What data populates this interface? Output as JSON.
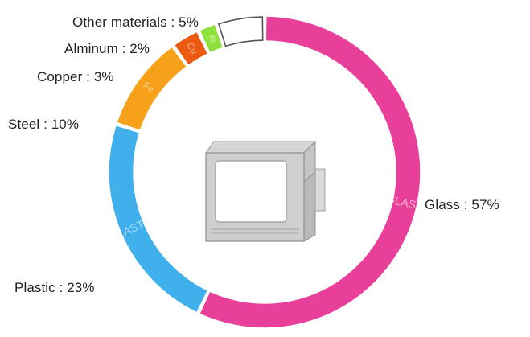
{
  "chart_data": {
    "type": "pie",
    "variant": "donut",
    "categories": [
      "Glass",
      "Plastic",
      "Steel",
      "Copper",
      "Alminum",
      "Other materials"
    ],
    "values": [
      57,
      23,
      10,
      3,
      2,
      5
    ],
    "unit": "%",
    "labels": [
      "Glass : 57%",
      "Plastic : 23%",
      "Steel : 10%",
      "Copper : 3%",
      "Alminum : 2%",
      "Other materials : 5%"
    ],
    "segment_text": [
      "GLASS",
      "PLASTIC",
      "Fe",
      "Cu",
      "Al",
      ""
    ],
    "colors": [
      "#e8409a",
      "#3fb0ec",
      "#f7a11a",
      "#ec5a12",
      "#8ee03c",
      "#ffffff"
    ],
    "center_icon": "crt-television-icon"
  }
}
